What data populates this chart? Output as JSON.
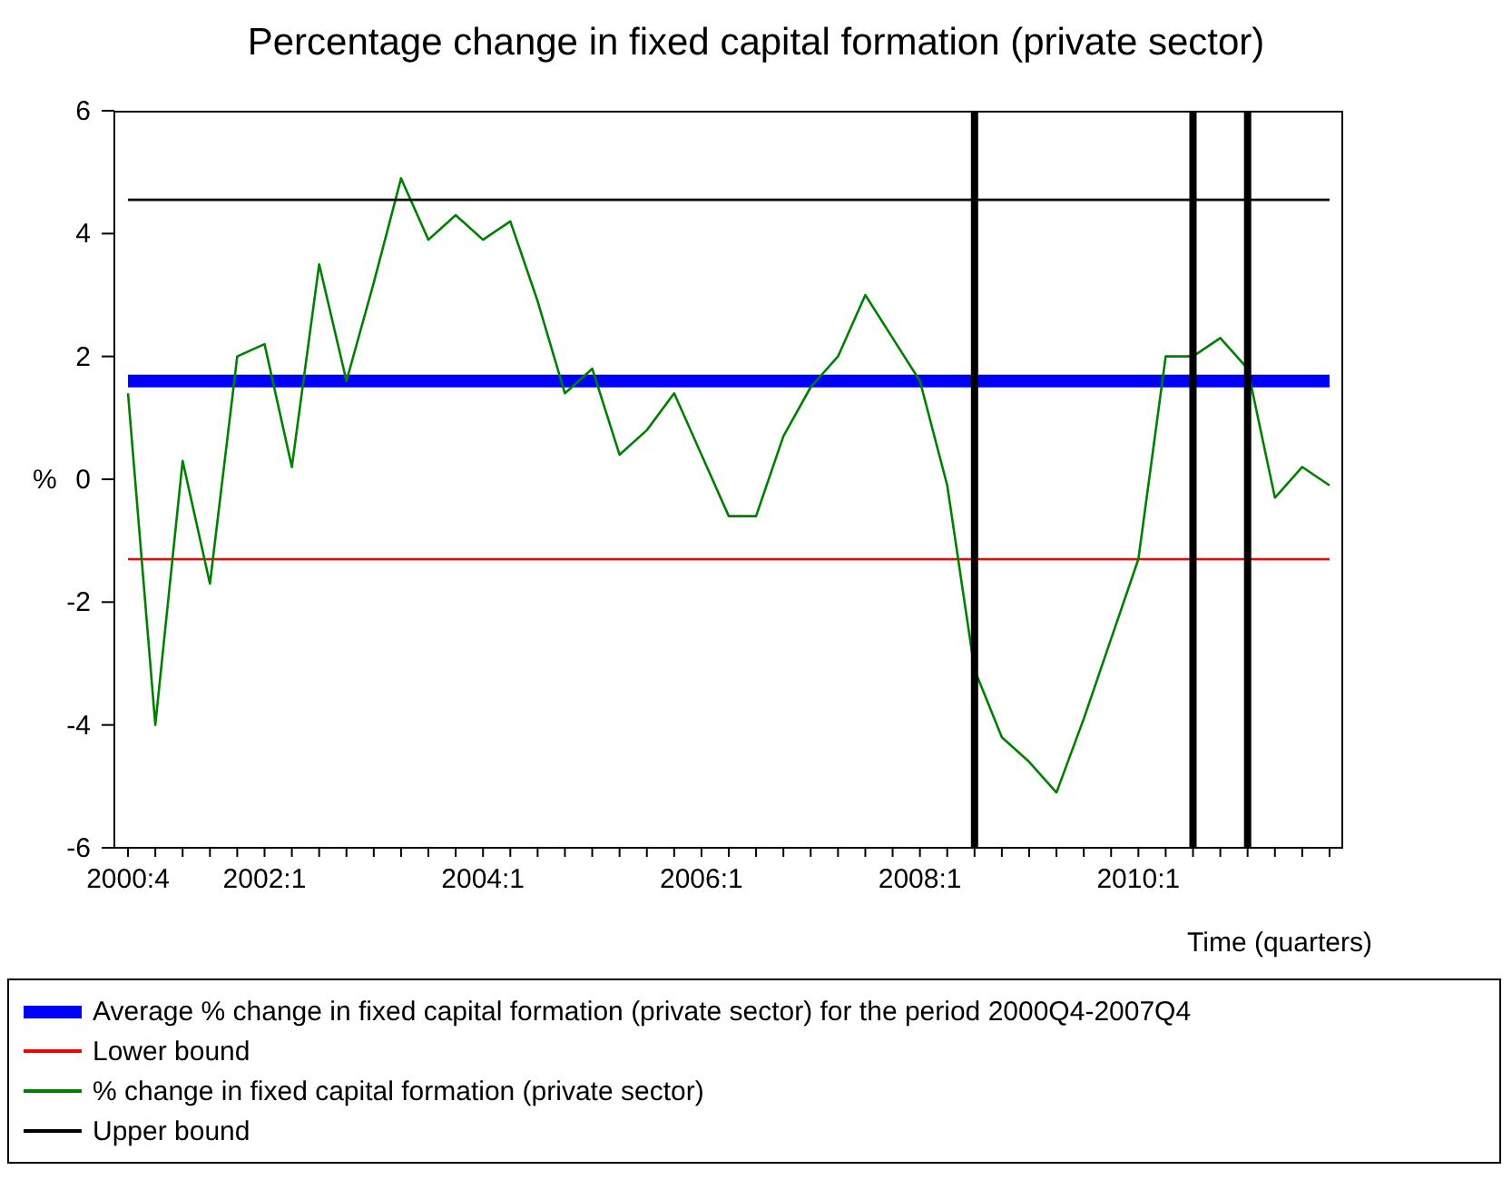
{
  "chart_data": {
    "type": "line",
    "title": "Percentage change in fixed capital formation (private sector)",
    "xlabel": "Time (quarters)",
    "ylabel": "%",
    "categories": [
      "2000:4",
      null,
      null,
      null,
      null,
      "2002:1",
      null,
      null,
      null,
      null,
      null,
      null,
      null,
      "2004:1",
      null,
      null,
      null,
      null,
      null,
      null,
      null,
      "2006:1",
      null,
      null,
      null,
      null,
      null,
      null,
      null,
      "2008:1",
      null,
      null,
      null,
      null,
      null,
      null,
      null,
      "2010:1",
      null,
      null,
      null,
      null,
      null,
      null,
      null
    ],
    "ylim": [
      -6,
      6
    ],
    "yticks": [
      -6,
      -4,
      -2,
      0,
      2,
      4,
      6
    ],
    "grid": false,
    "legend": "bottom",
    "series": [
      {
        "name": "Average % change in fixed capital formation (private sector) for the period 2000Q4-2007Q4",
        "color": "#0000ff",
        "values": [
          1.6,
          1.6,
          1.6,
          1.6,
          1.6,
          1.6,
          1.6,
          1.6,
          1.6,
          1.6,
          1.6,
          1.6,
          1.6,
          1.6,
          1.6,
          1.6,
          1.6,
          1.6,
          1.6,
          1.6,
          1.6,
          1.6,
          1.6,
          1.6,
          1.6,
          1.6,
          1.6,
          1.6,
          1.6,
          1.6,
          1.6,
          1.6,
          1.6,
          1.6,
          1.6,
          1.6,
          1.6,
          1.6,
          1.6,
          1.6,
          1.6,
          1.6,
          1.6,
          1.6,
          1.6
        ]
      },
      {
        "name": "Lower bound",
        "color": "#ff0000",
        "values": [
          -1.3,
          -1.3,
          -1.3,
          -1.3,
          -1.3,
          -1.3,
          -1.3,
          -1.3,
          -1.3,
          -1.3,
          -1.3,
          -1.3,
          -1.3,
          -1.3,
          -1.3,
          -1.3,
          -1.3,
          -1.3,
          -1.3,
          -1.3,
          -1.3,
          -1.3,
          -1.3,
          -1.3,
          -1.3,
          -1.3,
          -1.3,
          -1.3,
          -1.3,
          -1.3,
          -1.3,
          -1.3,
          -1.3,
          -1.3,
          -1.3,
          -1.3,
          -1.3,
          -1.3,
          -1.3,
          -1.3,
          -1.3,
          -1.3,
          -1.3,
          -1.3,
          -1.3
        ]
      },
      {
        "name": "% change in fixed capital formation (private sector)",
        "color": "#008000",
        "values": [
          1.4,
          -4.0,
          0.3,
          -1.7,
          2.0,
          2.2,
          0.2,
          3.5,
          1.6,
          3.2,
          4.9,
          3.9,
          4.3,
          3.9,
          4.2,
          2.9,
          1.4,
          1.8,
          0.4,
          0.8,
          1.4,
          0.4,
          -0.6,
          -0.6,
          0.7,
          1.5,
          2.0,
          3.0,
          2.3,
          1.6,
          -0.1,
          -3.1,
          -4.2,
          -4.6,
          -5.1,
          -3.9,
          -2.6,
          -1.3,
          2.0,
          2.0,
          2.3,
          1.8,
          -0.3,
          0.2,
          -0.1
        ]
      },
      {
        "name": "Upper bound",
        "color": "#000000",
        "values": [
          4.55,
          4.55,
          4.55,
          4.55,
          4.55,
          4.55,
          4.55,
          4.55,
          4.55,
          4.55,
          4.55,
          4.55,
          4.55,
          4.55,
          4.55,
          4.55,
          4.55,
          4.55,
          4.55,
          4.55,
          4.55,
          4.55,
          4.55,
          4.55,
          4.55,
          4.55,
          4.55,
          4.55,
          4.55,
          4.55,
          4.55,
          4.55,
          4.55,
          4.55,
          4.55,
          4.55,
          4.55,
          4.55,
          4.55,
          4.55,
          4.55,
          4.55,
          4.55,
          4.55,
          4.55
        ]
      }
    ]
  }
}
